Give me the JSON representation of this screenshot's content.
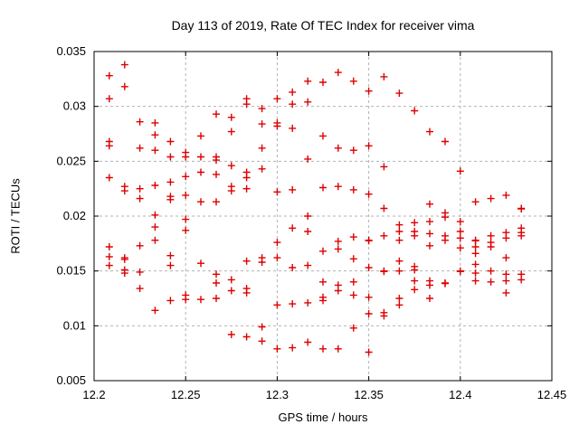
{
  "chart_data": {
    "type": "scatter",
    "title": "Day 113 of 2019, Rate Of TEC Index for receiver vima",
    "xlabel": "GPS time / hours",
    "ylabel": "ROTI / TECUs",
    "xlim": [
      12.2,
      12.45
    ],
    "ylim": [
      0.005,
      0.035
    ],
    "x_ticks": [
      12.2,
      12.25,
      12.3,
      12.35,
      12.4,
      12.45
    ],
    "x_tick_labels": [
      "12.2",
      "12.25",
      "12.3",
      "12.35",
      "12.4",
      "12.45"
    ],
    "y_ticks": [
      0.005,
      0.01,
      0.015,
      0.02,
      0.025,
      0.03,
      0.035
    ],
    "y_tick_labels": [
      "0.005",
      "0.01",
      "0.015",
      "0.02",
      "0.025",
      "0.03",
      "0.035"
    ],
    "grid": true,
    "legend": "none",
    "style": {
      "marker": "plus",
      "marker_color": "#dd0000",
      "grid_color": "#b3b3b3",
      "border_color": "#000000",
      "background": "#ffffff",
      "text_color": "#000000"
    },
    "series": [
      {
        "name": "roti",
        "points": [
          [
            12.2167,
            0.0338
          ],
          [
            12.2083,
            0.0328
          ],
          [
            12.2167,
            0.0318
          ],
          [
            12.2083,
            0.0307
          ],
          [
            12.2833,
            0.0307
          ],
          [
            12.2833,
            0.0302
          ],
          [
            12.2667,
            0.0293
          ],
          [
            12.275,
            0.029
          ],
          [
            12.225,
            0.0286
          ],
          [
            12.2333,
            0.0285
          ],
          [
            12.2333,
            0.0274
          ],
          [
            12.275,
            0.0277
          ],
          [
            12.2583,
            0.0273
          ],
          [
            12.2083,
            0.0268
          ],
          [
            12.2083,
            0.0264
          ],
          [
            12.225,
            0.0262
          ],
          [
            12.2333,
            0.026
          ],
          [
            12.2417,
            0.0268
          ],
          [
            12.25,
            0.0258
          ],
          [
            12.25,
            0.0254
          ],
          [
            12.2417,
            0.0254
          ],
          [
            12.2583,
            0.0254
          ],
          [
            12.2667,
            0.0254
          ],
          [
            12.2667,
            0.0251
          ],
          [
            12.3333,
            0.0331
          ],
          [
            12.3583,
            0.0327
          ],
          [
            12.3167,
            0.0323
          ],
          [
            12.325,
            0.0322
          ],
          [
            12.3417,
            0.0323
          ],
          [
            12.3083,
            0.0313
          ],
          [
            12.35,
            0.0314
          ],
          [
            12.3667,
            0.0312
          ],
          [
            12.3,
            0.0307
          ],
          [
            12.3083,
            0.0302
          ],
          [
            12.3167,
            0.0304
          ],
          [
            12.2917,
            0.0298
          ],
          [
            12.2917,
            0.0284
          ],
          [
            12.3,
            0.0285
          ],
          [
            12.3,
            0.0282
          ],
          [
            12.3083,
            0.028
          ],
          [
            12.325,
            0.0273
          ],
          [
            12.3333,
            0.0262
          ],
          [
            12.3417,
            0.026
          ],
          [
            12.35,
            0.0264
          ],
          [
            12.2917,
            0.0262
          ],
          [
            12.3167,
            0.0252
          ],
          [
            12.375,
            0.0296
          ],
          [
            12.3833,
            0.0277
          ],
          [
            12.3917,
            0.0268
          ],
          [
            12.2083,
            0.0235
          ],
          [
            12.2167,
            0.0227
          ],
          [
            12.2167,
            0.0223
          ],
          [
            12.225,
            0.0225
          ],
          [
            12.225,
            0.0216
          ],
          [
            12.2333,
            0.0228
          ],
          [
            12.2417,
            0.0231
          ],
          [
            12.2417,
            0.0218
          ],
          [
            12.2417,
            0.0215
          ],
          [
            12.25,
            0.0236
          ],
          [
            12.25,
            0.0219
          ],
          [
            12.2583,
            0.024
          ],
          [
            12.2583,
            0.0213
          ],
          [
            12.2667,
            0.0238
          ],
          [
            12.2667,
            0.0213
          ],
          [
            12.275,
            0.0246
          ],
          [
            12.275,
            0.0227
          ],
          [
            12.275,
            0.0223
          ],
          [
            12.2833,
            0.024
          ],
          [
            12.2833,
            0.0235
          ],
          [
            12.2833,
            0.0225
          ],
          [
            12.2333,
            0.0201
          ],
          [
            12.2333,
            0.019
          ],
          [
            12.2333,
            0.0178
          ],
          [
            12.25,
            0.0197
          ],
          [
            12.25,
            0.0187
          ],
          [
            12.225,
            0.0173
          ],
          [
            12.2083,
            0.0172
          ],
          [
            12.2083,
            0.0163
          ],
          [
            12.2167,
            0.0162
          ],
          [
            12.2167,
            0.01605
          ],
          [
            12.2083,
            0.0155
          ],
          [
            12.2417,
            0.0164
          ],
          [
            12.2417,
            0.0155
          ],
          [
            12.2583,
            0.0157
          ],
          [
            12.2917,
            0.0243
          ],
          [
            12.3583,
            0.0245
          ],
          [
            12.3,
            0.0222
          ],
          [
            12.3083,
            0.0224
          ],
          [
            12.325,
            0.0226
          ],
          [
            12.3333,
            0.0227
          ],
          [
            12.3417,
            0.0224
          ],
          [
            12.35,
            0.022
          ],
          [
            12.3583,
            0.0207
          ],
          [
            12.3167,
            0.02
          ],
          [
            12.3083,
            0.0189
          ],
          [
            12.3167,
            0.0186
          ],
          [
            12.3,
            0.0176
          ],
          [
            12.3333,
            0.0177
          ],
          [
            12.3333,
            0.017
          ],
          [
            12.3417,
            0.0181
          ],
          [
            12.35,
            0.0178
          ],
          [
            12.35,
            0.01775
          ],
          [
            12.3583,
            0.0182
          ],
          [
            12.3667,
            0.0192
          ],
          [
            12.3667,
            0.0186
          ],
          [
            12.3667,
            0.0178
          ],
          [
            12.325,
            0.0168
          ],
          [
            12.3,
            0.0162
          ],
          [
            12.2917,
            0.0162
          ],
          [
            12.2917,
            0.0158
          ],
          [
            12.3417,
            0.0161
          ],
          [
            12.3167,
            0.0155
          ],
          [
            12.3667,
            0.0159
          ],
          [
            12.2833,
            0.0159
          ],
          [
            12.4,
            0.0241
          ],
          [
            12.3833,
            0.0211
          ],
          [
            12.3917,
            0.0203
          ],
          [
            12.3917,
            0.0199
          ],
          [
            12.4083,
            0.0213
          ],
          [
            12.4167,
            0.0216
          ],
          [
            12.425,
            0.0219
          ],
          [
            12.4333,
            0.0207
          ],
          [
            12.4333,
            0.02065
          ],
          [
            12.375,
            0.0194
          ],
          [
            12.3833,
            0.0195
          ],
          [
            12.4,
            0.0195
          ],
          [
            12.375,
            0.0186
          ],
          [
            12.375,
            0.0182
          ],
          [
            12.3833,
            0.0184
          ],
          [
            12.3917,
            0.0182
          ],
          [
            12.3917,
            0.0178
          ],
          [
            12.3833,
            0.0173
          ],
          [
            12.4,
            0.0186
          ],
          [
            12.4,
            0.018
          ],
          [
            12.4,
            0.0171
          ],
          [
            12.4083,
            0.0178
          ],
          [
            12.4083,
            0.01775
          ],
          [
            12.4083,
            0.0172
          ],
          [
            12.4083,
            0.0166
          ],
          [
            12.4167,
            0.0182
          ],
          [
            12.4167,
            0.0176
          ],
          [
            12.4167,
            0.0172
          ],
          [
            12.425,
            0.0185
          ],
          [
            12.425,
            0.018
          ],
          [
            12.4333,
            0.0189
          ],
          [
            12.4333,
            0.0185
          ],
          [
            12.4333,
            0.0182
          ],
          [
            12.425,
            0.0162
          ],
          [
            12.375,
            0.0154
          ],
          [
            12.375,
            0.0151
          ],
          [
            12.4083,
            0.0156
          ],
          [
            12.2167,
            0.0151
          ],
          [
            12.2167,
            0.0148
          ],
          [
            12.225,
            0.0149
          ],
          [
            12.225,
            0.0134
          ],
          [
            12.2333,
            0.0114
          ],
          [
            12.2417,
            0.0123
          ],
          [
            12.25,
            0.0128
          ],
          [
            12.25,
            0.0124
          ],
          [
            12.2583,
            0.0124
          ],
          [
            12.2667,
            0.0147
          ],
          [
            12.2667,
            0.0139
          ],
          [
            12.2667,
            0.0125
          ],
          [
            12.275,
            0.0142
          ],
          [
            12.275,
            0.0132
          ],
          [
            12.2833,
            0.0134
          ],
          [
            12.2833,
            0.013
          ],
          [
            12.275,
            0.0092
          ],
          [
            12.2833,
            0.009
          ],
          [
            12.2917,
            0.0099
          ],
          [
            12.2917,
            0.0086
          ],
          [
            12.3,
            0.0119
          ],
          [
            12.3,
            0.0079
          ],
          [
            12.3083,
            0.012
          ],
          [
            12.3083,
            0.008
          ],
          [
            12.3167,
            0.0121
          ],
          [
            12.3167,
            0.0085
          ],
          [
            12.325,
            0.014
          ],
          [
            12.325,
            0.0126
          ],
          [
            12.325,
            0.0123
          ],
          [
            12.325,
            0.0079
          ],
          [
            12.3333,
            0.0137
          ],
          [
            12.3333,
            0.0132
          ],
          [
            12.3333,
            0.0079
          ],
          [
            12.3417,
            0.014
          ],
          [
            12.3417,
            0.0128
          ],
          [
            12.3417,
            0.0098
          ],
          [
            12.35,
            0.0126
          ],
          [
            12.35,
            0.0111
          ],
          [
            12.35,
            0.0076
          ],
          [
            12.3083,
            0.0153
          ],
          [
            12.35,
            0.0153
          ],
          [
            12.3583,
            0.015
          ],
          [
            12.3583,
            0.01495
          ],
          [
            12.3667,
            0.015
          ],
          [
            12.3667,
            0.0125
          ],
          [
            12.3667,
            0.0119
          ],
          [
            12.3583,
            0.0112
          ],
          [
            12.3583,
            0.0109
          ],
          [
            12.375,
            0.0141
          ],
          [
            12.375,
            0.0133
          ],
          [
            12.3833,
            0.0141
          ],
          [
            12.3833,
            0.0137
          ],
          [
            12.3833,
            0.0125
          ],
          [
            12.3917,
            0.0139
          ],
          [
            12.3917,
            0.01385
          ],
          [
            12.4,
            0.015
          ],
          [
            12.4,
            0.01495
          ],
          [
            12.4083,
            0.0148
          ],
          [
            12.4083,
            0.0141
          ],
          [
            12.4167,
            0.015
          ],
          [
            12.4167,
            0.014
          ],
          [
            12.425,
            0.0147
          ],
          [
            12.425,
            0.0141
          ],
          [
            12.425,
            0.013
          ],
          [
            12.4333,
            0.0147
          ],
          [
            12.4333,
            0.0142
          ]
        ]
      }
    ]
  }
}
